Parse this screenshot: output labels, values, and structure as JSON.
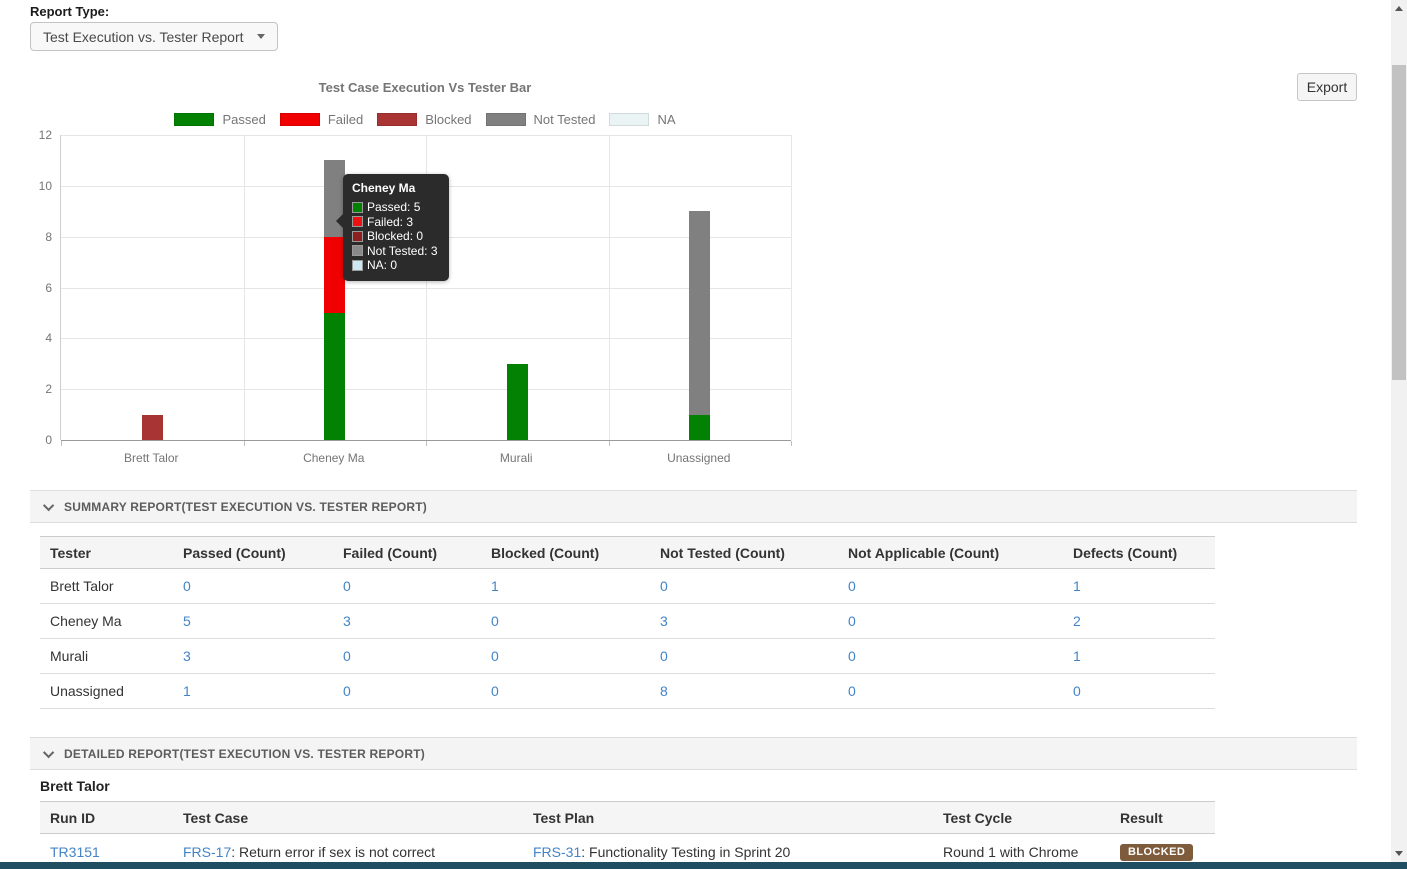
{
  "page": {
    "report_type_label": "Report Type:",
    "report_type_value": "Test Execution vs. Tester Report",
    "export_label": "Export"
  },
  "chart_data": {
    "type": "bar",
    "stacked": true,
    "title": "Test Case Execution Vs Tester Bar",
    "categories": [
      "Brett Talor",
      "Cheney Ma",
      "Murali",
      "Unassigned"
    ],
    "series": [
      {
        "name": "Passed",
        "color": "#028102",
        "values": [
          0,
          5,
          3,
          1
        ]
      },
      {
        "name": "Failed",
        "color": "#f00000",
        "values": [
          0,
          3,
          0,
          0
        ]
      },
      {
        "name": "Blocked",
        "color": "#a83434",
        "values": [
          1,
          0,
          0,
          0
        ]
      },
      {
        "name": "Not Tested",
        "color": "#808080",
        "values": [
          0,
          3,
          0,
          8
        ]
      },
      {
        "name": "NA",
        "color": "#eaf4f5",
        "values": [
          0,
          0,
          0,
          0
        ]
      }
    ],
    "ylim": [
      0,
      12
    ],
    "yticks": [
      0,
      2,
      4,
      6,
      8,
      10,
      12
    ],
    "legend_position": "top",
    "grid": true
  },
  "tooltip": {
    "title": "Cheney Ma",
    "rows": [
      {
        "label": "Passed",
        "value": "5",
        "color": "#028102"
      },
      {
        "label": "Failed",
        "value": "3",
        "color": "#ee1111"
      },
      {
        "label": "Blocked",
        "value": "0",
        "color": "#8c1f1f"
      },
      {
        "label": "Not Tested",
        "value": "3",
        "color": "#8a8a8a"
      },
      {
        "label": "NA",
        "value": "0",
        "color": "#cde8f0"
      }
    ]
  },
  "summary": {
    "title": "SUMMARY REPORT(TEST EXECUTION VS. TESTER REPORT)",
    "columns": [
      "Tester",
      "Passed (Count)",
      "Failed (Count)",
      "Blocked (Count)",
      "Not Tested (Count)",
      "Not Applicable (Count)",
      "Defects (Count)"
    ],
    "rows": [
      {
        "tester": "Brett Talor",
        "counts": [
          "0",
          "0",
          "1",
          "0",
          "0",
          "1"
        ]
      },
      {
        "tester": "Cheney Ma",
        "counts": [
          "5",
          "3",
          "0",
          "3",
          "0",
          "2"
        ]
      },
      {
        "tester": "Murali",
        "counts": [
          "3",
          "0",
          "0",
          "0",
          "0",
          "1"
        ]
      },
      {
        "tester": "Unassigned",
        "counts": [
          "1",
          "0",
          "0",
          "8",
          "0",
          "0"
        ]
      }
    ]
  },
  "detailed": {
    "title": "DETAILED REPORT(TEST EXECUTION VS. TESTER REPORT)",
    "group": "Brett Talor",
    "columns": [
      "Run ID",
      "Test Case",
      "Test Plan",
      "Test Cycle",
      "Result"
    ],
    "rows": [
      {
        "run_id": "TR3151",
        "test_case_link": "FRS-17",
        "test_case_text": ": Return error if sex is not correct",
        "test_plan_link": "FRS-31",
        "test_plan_text": ": Functionality Testing in Sprint 20",
        "test_cycle": "Round 1 with Chrome",
        "result": "BLOCKED",
        "result_color": "#7e5b3b"
      }
    ]
  },
  "colors": {
    "link_blue": "#4384c8",
    "bottom_bar": "#1f4e63"
  }
}
